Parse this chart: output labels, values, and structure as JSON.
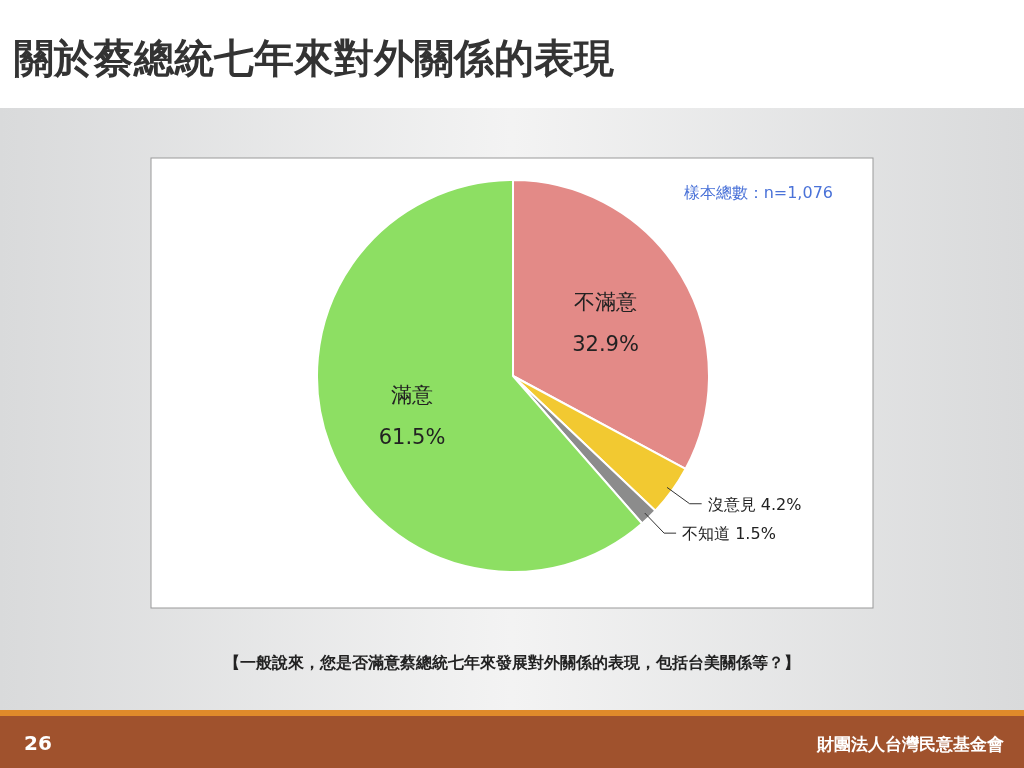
{
  "chart_data": {
    "type": "pie",
    "title": "關於蔡總統七年來對外關係的表現",
    "categories": [
      "不滿意",
      "沒意見",
      "不知道",
      "滿意"
    ],
    "values": [
      32.9,
      4.2,
      1.5,
      61.5
    ],
    "value_labels": [
      "32.9%",
      "4.2%",
      "1.5%",
      "61.5%"
    ],
    "colors": [
      "#e38a87",
      "#f2c931",
      "#8c8c8c",
      "#8ddf63"
    ],
    "annotations": [
      "樣本總數：n=1,076",
      "【一般說來，您是否滿意蔡總統七年來發展對外關係的表現，包括台美關係等？】",
      "26",
      "財團法人台灣民意基金會"
    ]
  }
}
